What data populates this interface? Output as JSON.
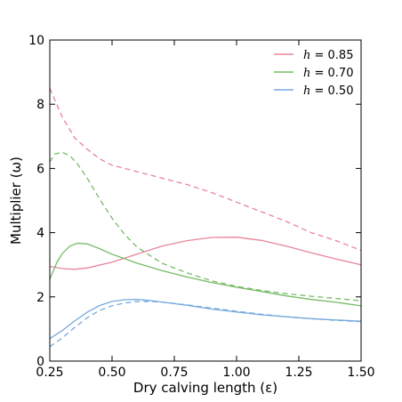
{
  "chart_data": {
    "type": "line",
    "title": "",
    "xlabel": "Dry calving length (ε)",
    "ylabel": "Multiplier (ω)",
    "xlim": [
      0.25,
      1.5
    ],
    "ylim": [
      0,
      10
    ],
    "xticks": [
      "0.25",
      "0.50",
      "0.75",
      "1.00",
      "1.25",
      "1.50"
    ],
    "yticks": [
      "0",
      "2",
      "4",
      "6",
      "8",
      "10"
    ],
    "grid": false,
    "legend_position": "top-right",
    "legend": [
      {
        "var": "h",
        "text": " = 0.85",
        "color": "#e8849b"
      },
      {
        "var": "h",
        "text": " = 0.70",
        "color": "#77bb66"
      },
      {
        "var": "h",
        "text": " = 0.50",
        "color": "#77aadd"
      }
    ],
    "series": [
      {
        "h": "0.85",
        "style": "solid",
        "color": "#e8849b",
        "x": [
          0.25,
          0.3,
          0.35,
          0.4,
          0.5,
          0.6,
          0.7,
          0.8,
          0.9,
          1.0,
          1.1,
          1.2,
          1.3,
          1.4,
          1.5
        ],
        "y": [
          2.95,
          2.88,
          2.86,
          2.9,
          3.08,
          3.33,
          3.58,
          3.75,
          3.85,
          3.86,
          3.76,
          3.58,
          3.37,
          3.18,
          3.0
        ]
      },
      {
        "h": "0.85",
        "style": "dashed",
        "color": "#e8849b",
        "x": [
          0.25,
          0.3,
          0.35,
          0.4,
          0.45,
          0.5,
          0.6,
          0.7,
          0.8,
          0.9,
          1.0,
          1.1,
          1.2,
          1.3,
          1.4,
          1.5
        ],
        "y": [
          8.5,
          7.6,
          6.95,
          6.6,
          6.3,
          6.1,
          5.9,
          5.7,
          5.5,
          5.25,
          4.95,
          4.65,
          4.35,
          4.0,
          3.75,
          3.45
        ]
      },
      {
        "h": "0.70",
        "style": "solid",
        "color": "#77bb66",
        "x": [
          0.25,
          0.28,
          0.3,
          0.33,
          0.36,
          0.4,
          0.45,
          0.5,
          0.6,
          0.7,
          0.8,
          0.9,
          1.0,
          1.1,
          1.2,
          1.3,
          1.4,
          1.5
        ],
        "y": [
          2.55,
          3.1,
          3.35,
          3.58,
          3.67,
          3.65,
          3.5,
          3.33,
          3.05,
          2.82,
          2.62,
          2.45,
          2.3,
          2.17,
          2.03,
          1.92,
          1.83,
          1.72
        ]
      },
      {
        "h": "0.70",
        "style": "dashed",
        "color": "#77bb66",
        "x": [
          0.25,
          0.27,
          0.3,
          0.33,
          0.36,
          0.4,
          0.45,
          0.5,
          0.55,
          0.6,
          0.7,
          0.8,
          0.9,
          1.0,
          1.1,
          1.2,
          1.3,
          1.4,
          1.5
        ],
        "y": [
          6.2,
          6.45,
          6.5,
          6.4,
          6.15,
          5.7,
          5.05,
          4.45,
          3.95,
          3.55,
          3.05,
          2.75,
          2.5,
          2.33,
          2.2,
          2.1,
          2.02,
          1.95,
          1.88
        ]
      },
      {
        "h": "0.50",
        "style": "solid",
        "color": "#77aadd",
        "x": [
          0.25,
          0.3,
          0.35,
          0.4,
          0.45,
          0.5,
          0.55,
          0.6,
          0.65,
          0.7,
          0.8,
          0.9,
          1.0,
          1.1,
          1.2,
          1.3,
          1.4,
          1.5
        ],
        "y": [
          0.7,
          0.95,
          1.25,
          1.52,
          1.73,
          1.86,
          1.91,
          1.92,
          1.89,
          1.84,
          1.74,
          1.62,
          1.53,
          1.44,
          1.38,
          1.32,
          1.28,
          1.24
        ]
      },
      {
        "h": "0.50",
        "style": "dashed",
        "color": "#77aadd",
        "x": [
          0.25,
          0.3,
          0.35,
          0.4,
          0.45,
          0.5,
          0.55,
          0.6,
          0.65,
          0.7,
          0.8,
          0.9,
          1.0,
          1.1,
          1.2,
          1.3,
          1.4,
          1.5
        ],
        "y": [
          0.45,
          0.72,
          1.05,
          1.35,
          1.58,
          1.72,
          1.81,
          1.85,
          1.86,
          1.84,
          1.75,
          1.65,
          1.55,
          1.46,
          1.38,
          1.32,
          1.27,
          1.23
        ]
      }
    ]
  }
}
